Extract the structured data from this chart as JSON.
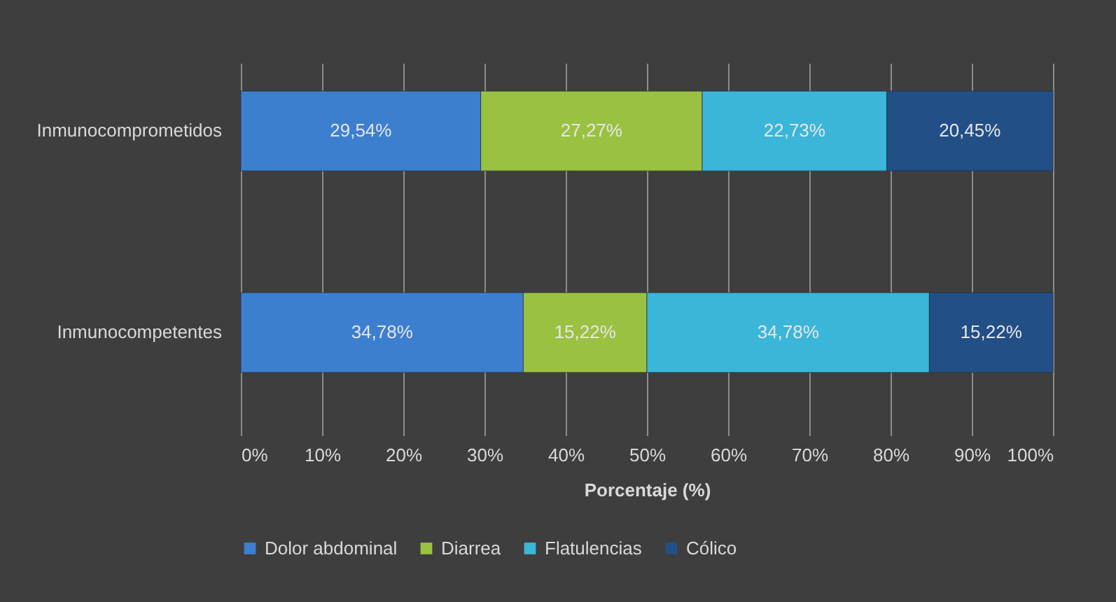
{
  "chart_data": {
    "type": "bar",
    "orientation": "horizontal",
    "stacked": true,
    "categories": [
      "Inmunocomprometidos",
      "Inmunocompetentes"
    ],
    "xlabel": "Porcentaje (%)",
    "xlim": [
      0,
      100
    ],
    "xticks": [
      {
        "value": 0,
        "label": "0%"
      },
      {
        "value": 10,
        "label": "10%"
      },
      {
        "value": 20,
        "label": "20%"
      },
      {
        "value": 30,
        "label": "30%"
      },
      {
        "value": 40,
        "label": "40%"
      },
      {
        "value": 50,
        "label": "50%"
      },
      {
        "value": 60,
        "label": "60%"
      },
      {
        "value": 70,
        "label": "70%"
      },
      {
        "value": 80,
        "label": "80%"
      },
      {
        "value": 90,
        "label": "90%"
      },
      {
        "value": 100,
        "label": "100%"
      }
    ],
    "grid": "x",
    "legend": "bottom",
    "series": [
      {
        "name": "Dolor abdominal",
        "color": "#3d7fcf",
        "values": [
          29.54,
          34.78
        ],
        "value_labels": [
          "29,54%",
          "34,78%"
        ]
      },
      {
        "name": "Diarrea",
        "color": "#9bc142",
        "values": [
          27.27,
          15.22
        ],
        "value_labels": [
          "27,27%",
          "15,22%"
        ]
      },
      {
        "name": "Flatulencias",
        "color": "#3bb6d8",
        "values": [
          22.73,
          34.78
        ],
        "value_labels": [
          "22,73%",
          "34,78%"
        ]
      },
      {
        "name": "Cólico",
        "color": "#224f86",
        "values": [
          20.45,
          15.22
        ],
        "value_labels": [
          "20,45%",
          "15,22%"
        ]
      }
    ]
  }
}
